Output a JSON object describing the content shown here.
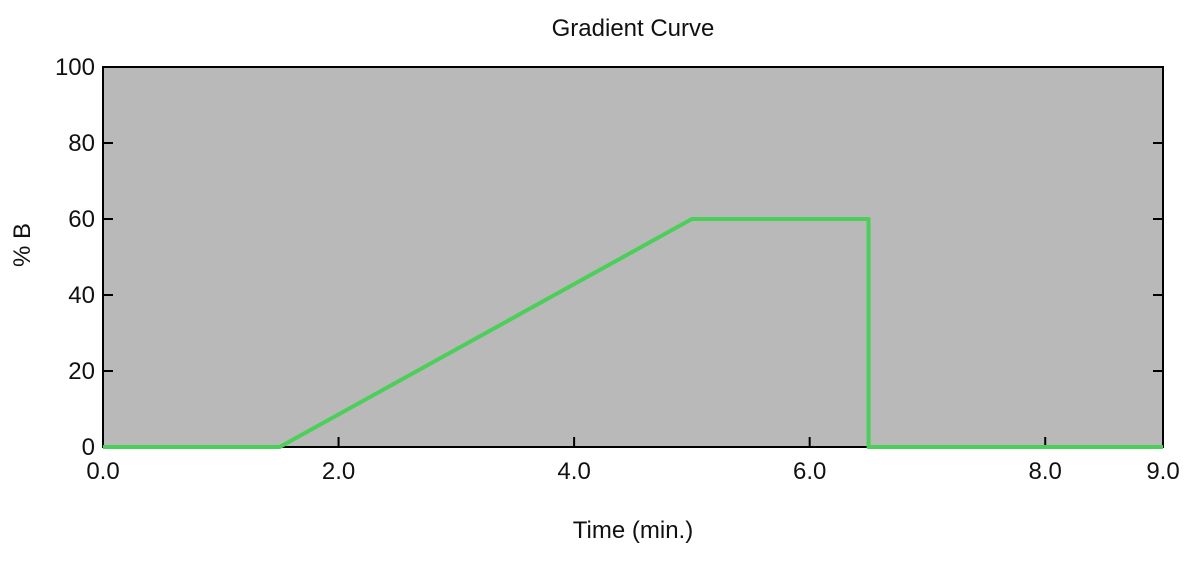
{
  "chart_data": {
    "type": "line",
    "title": "Gradient Curve",
    "xlabel": "Time (min.)",
    "ylabel": "% B",
    "xlim": [
      0,
      9
    ],
    "ylim": [
      0,
      100
    ],
    "x_ticks": [
      "0.0",
      "2.0",
      "4.0",
      "6.0",
      "8.0",
      "9.0"
    ],
    "x_tick_values": [
      0,
      2,
      4,
      6,
      8,
      9
    ],
    "y_ticks": [
      "0",
      "20",
      "40",
      "60",
      "80",
      "100"
    ],
    "y_tick_values": [
      0,
      20,
      40,
      60,
      80,
      100
    ],
    "grid": false,
    "plot_background": "#b9b9b9",
    "series": [
      {
        "color": "#4ccf5a",
        "points": [
          [
            0,
            0
          ],
          [
            1.5,
            0
          ],
          [
            5.0,
            60
          ],
          [
            6.5,
            60
          ],
          [
            6.5,
            0
          ],
          [
            9,
            0
          ]
        ]
      }
    ]
  }
}
